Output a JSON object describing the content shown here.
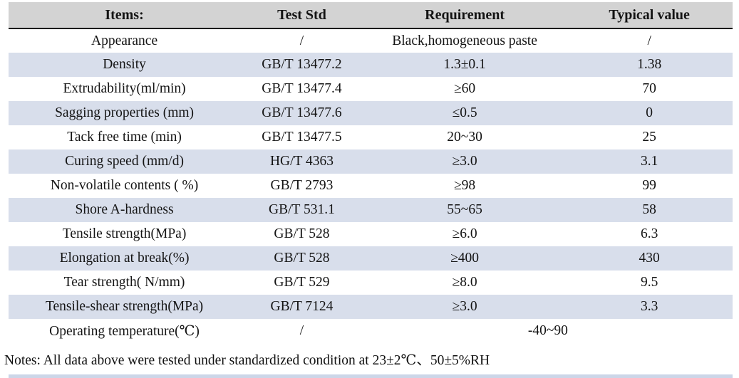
{
  "table": {
    "columns": [
      "Items:",
      "Test Std",
      "Requirement",
      "Typical value"
    ],
    "rows": [
      {
        "item": "Appearance",
        "std": "/",
        "req": "Black,homogeneous paste",
        "typ": "/"
      },
      {
        "item": "Density",
        "std": "GB/T 13477.2",
        "req": "1.3±0.1",
        "typ": "1.38"
      },
      {
        "item": "Extrudability(ml/min)",
        "std": "GB/T 13477.4",
        "req": "≥60",
        "typ": "70"
      },
      {
        "item": "Sagging properties (mm)",
        "std": "GB/T 13477.6",
        "req": "≤0.5",
        "typ": "0"
      },
      {
        "item": "Tack free time (min)",
        "std": "GB/T 13477.5",
        "req": "20~30",
        "typ": "25"
      },
      {
        "item": "Curing speed (mm/d)",
        "std": "HG/T 4363",
        "req": "≥3.0",
        "typ": "3.1"
      },
      {
        "item": "Non-volatile contents ( %)",
        "std": "GB/T 2793",
        "req": "≥98",
        "typ": "99"
      },
      {
        "item": "Shore A-hardness",
        "std": "GB/T 531.1",
        "req": "55~65",
        "typ": "58"
      },
      {
        "item": "Tensile strength(MPa)",
        "std": "GB/T 528",
        "req": "≥6.0",
        "typ": "6.3"
      },
      {
        "item": "Elongation at break(%)",
        "std": "GB/T 528",
        "req": "≥400",
        "typ": "430"
      },
      {
        "item": "Tear strength( N/mm)",
        "std": "GB/T 529",
        "req": "≥8.0",
        "typ": "9.5"
      },
      {
        "item": "Tensile-shear strength(MPa)",
        "std": "GB/T 7124",
        "req": "≥3.0",
        "typ": "3.3"
      },
      {
        "item": "Operating temperature(℃)",
        "std": "/",
        "req": "-40~90",
        "typ": null,
        "merged": true
      }
    ]
  },
  "notes": "Notes: All data above were tested under standardized condition at 23±2℃、50±5%RH",
  "colors": {
    "header_bg": "#d3d3d3",
    "stripe_bg": "#d8deeb",
    "header_rule": "#0c0c0c",
    "bottom_strip_bg": "#ccd6e8",
    "text": "#141414"
  }
}
